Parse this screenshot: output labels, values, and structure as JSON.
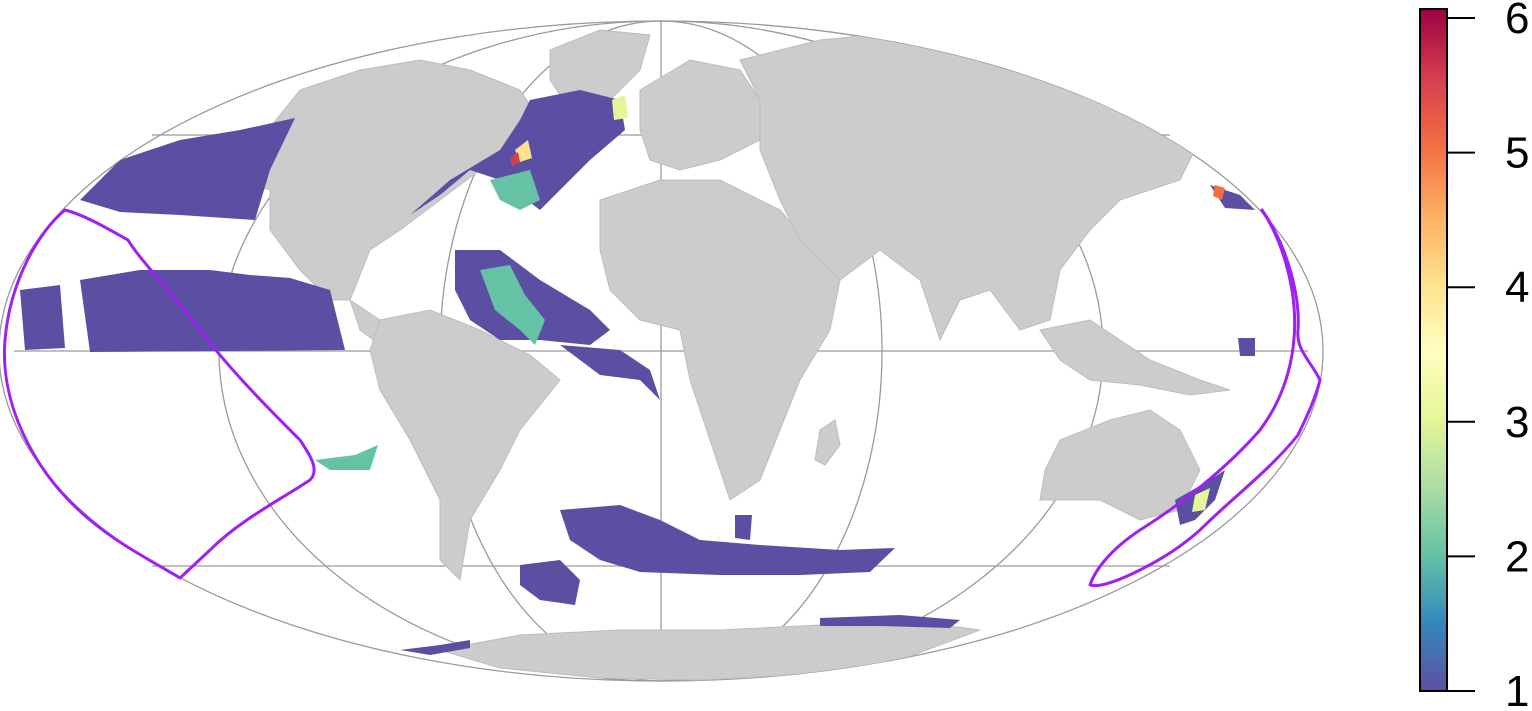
{
  "map": {
    "projection": "mollweide",
    "colors": {
      "land": "#cccccc",
      "graticule": "#9a9a9a",
      "region_outline": "#a020f0",
      "low_value": "#5a4fa2"
    }
  },
  "legend": {
    "type": "colorbar",
    "palette": "spectral",
    "min": 1,
    "max": 6,
    "ticks": [
      "1",
      "2",
      "3",
      "4",
      "5",
      "6"
    ],
    "colors": [
      "#5e4fa2",
      "#3288bd",
      "#66c2a5",
      "#abdda4",
      "#e6f598",
      "#ffffbf",
      "#fee08b",
      "#fdae61",
      "#f46d43",
      "#d53e4f",
      "#9e0142"
    ]
  }
}
